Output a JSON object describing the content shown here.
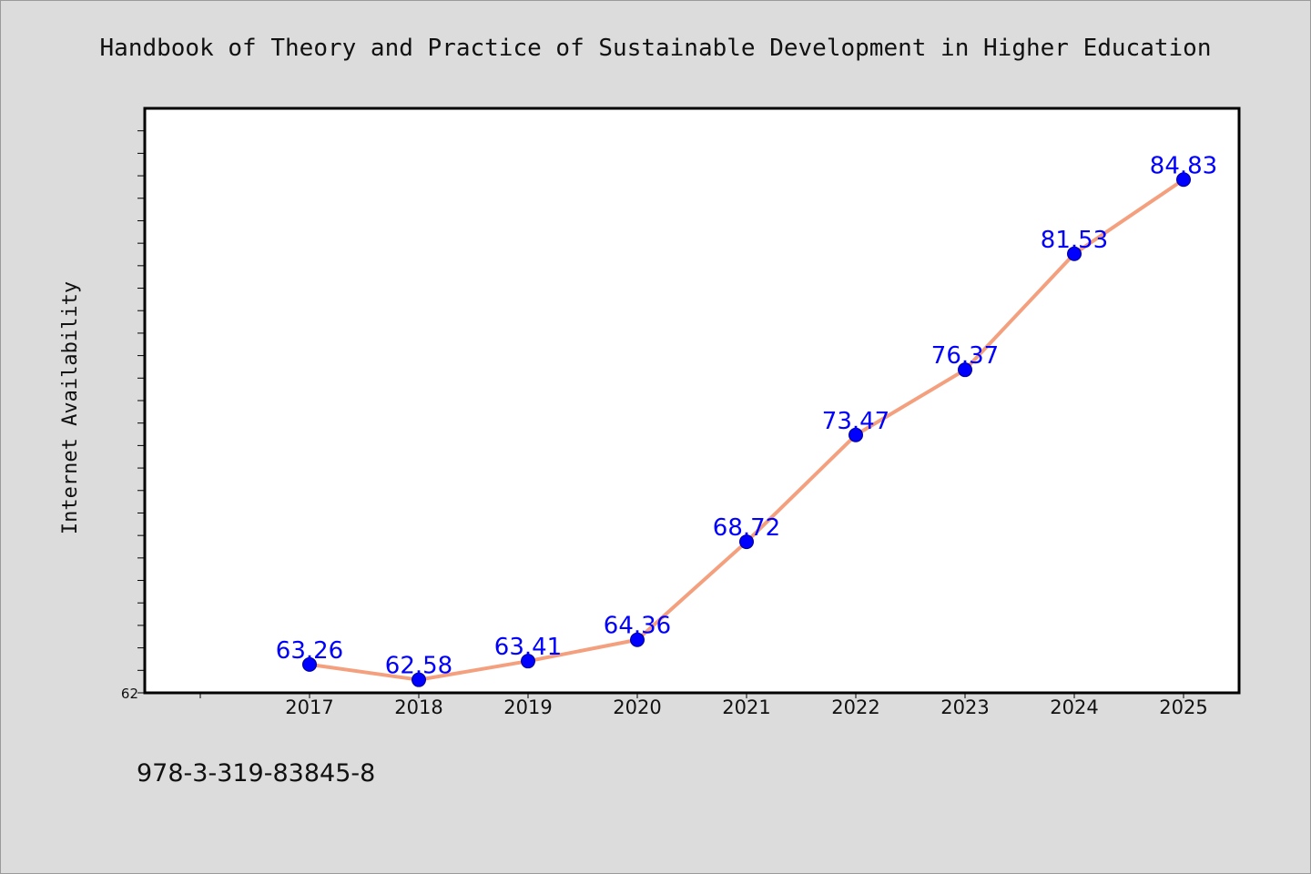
{
  "chart_data": {
    "type": "line",
    "title": "Handbook of Theory and Practice of Sustainable Development in Higher Education",
    "xlabel": "",
    "ylabel": "Internet Availability",
    "categories": [
      "2017",
      "2018",
      "2019",
      "2020",
      "2021",
      "2022",
      "2023",
      "2024",
      "2025"
    ],
    "series": [
      {
        "values": [
          63.26,
          62.58,
          63.41,
          64.36,
          68.72,
          73.47,
          76.37,
          81.53,
          84.83
        ],
        "data_labels": [
          "63.26",
          "62.58",
          "63.41",
          "64.36",
          "68.72",
          "73.47",
          "76.37",
          "81.53",
          "84.83"
        ]
      }
    ],
    "ylim": [
      62,
      88
    ],
    "yticks_labeled": [
      "62"
    ],
    "grid": false,
    "legend": "none",
    "colors": {
      "line": "#f4a07e",
      "marker": "#0000ff",
      "data_label": "#0000ff",
      "plot_background": "#ffffff",
      "page_background": "#dcdcdc"
    }
  },
  "footer": {
    "isbn": "978-3-319-83845-8"
  }
}
